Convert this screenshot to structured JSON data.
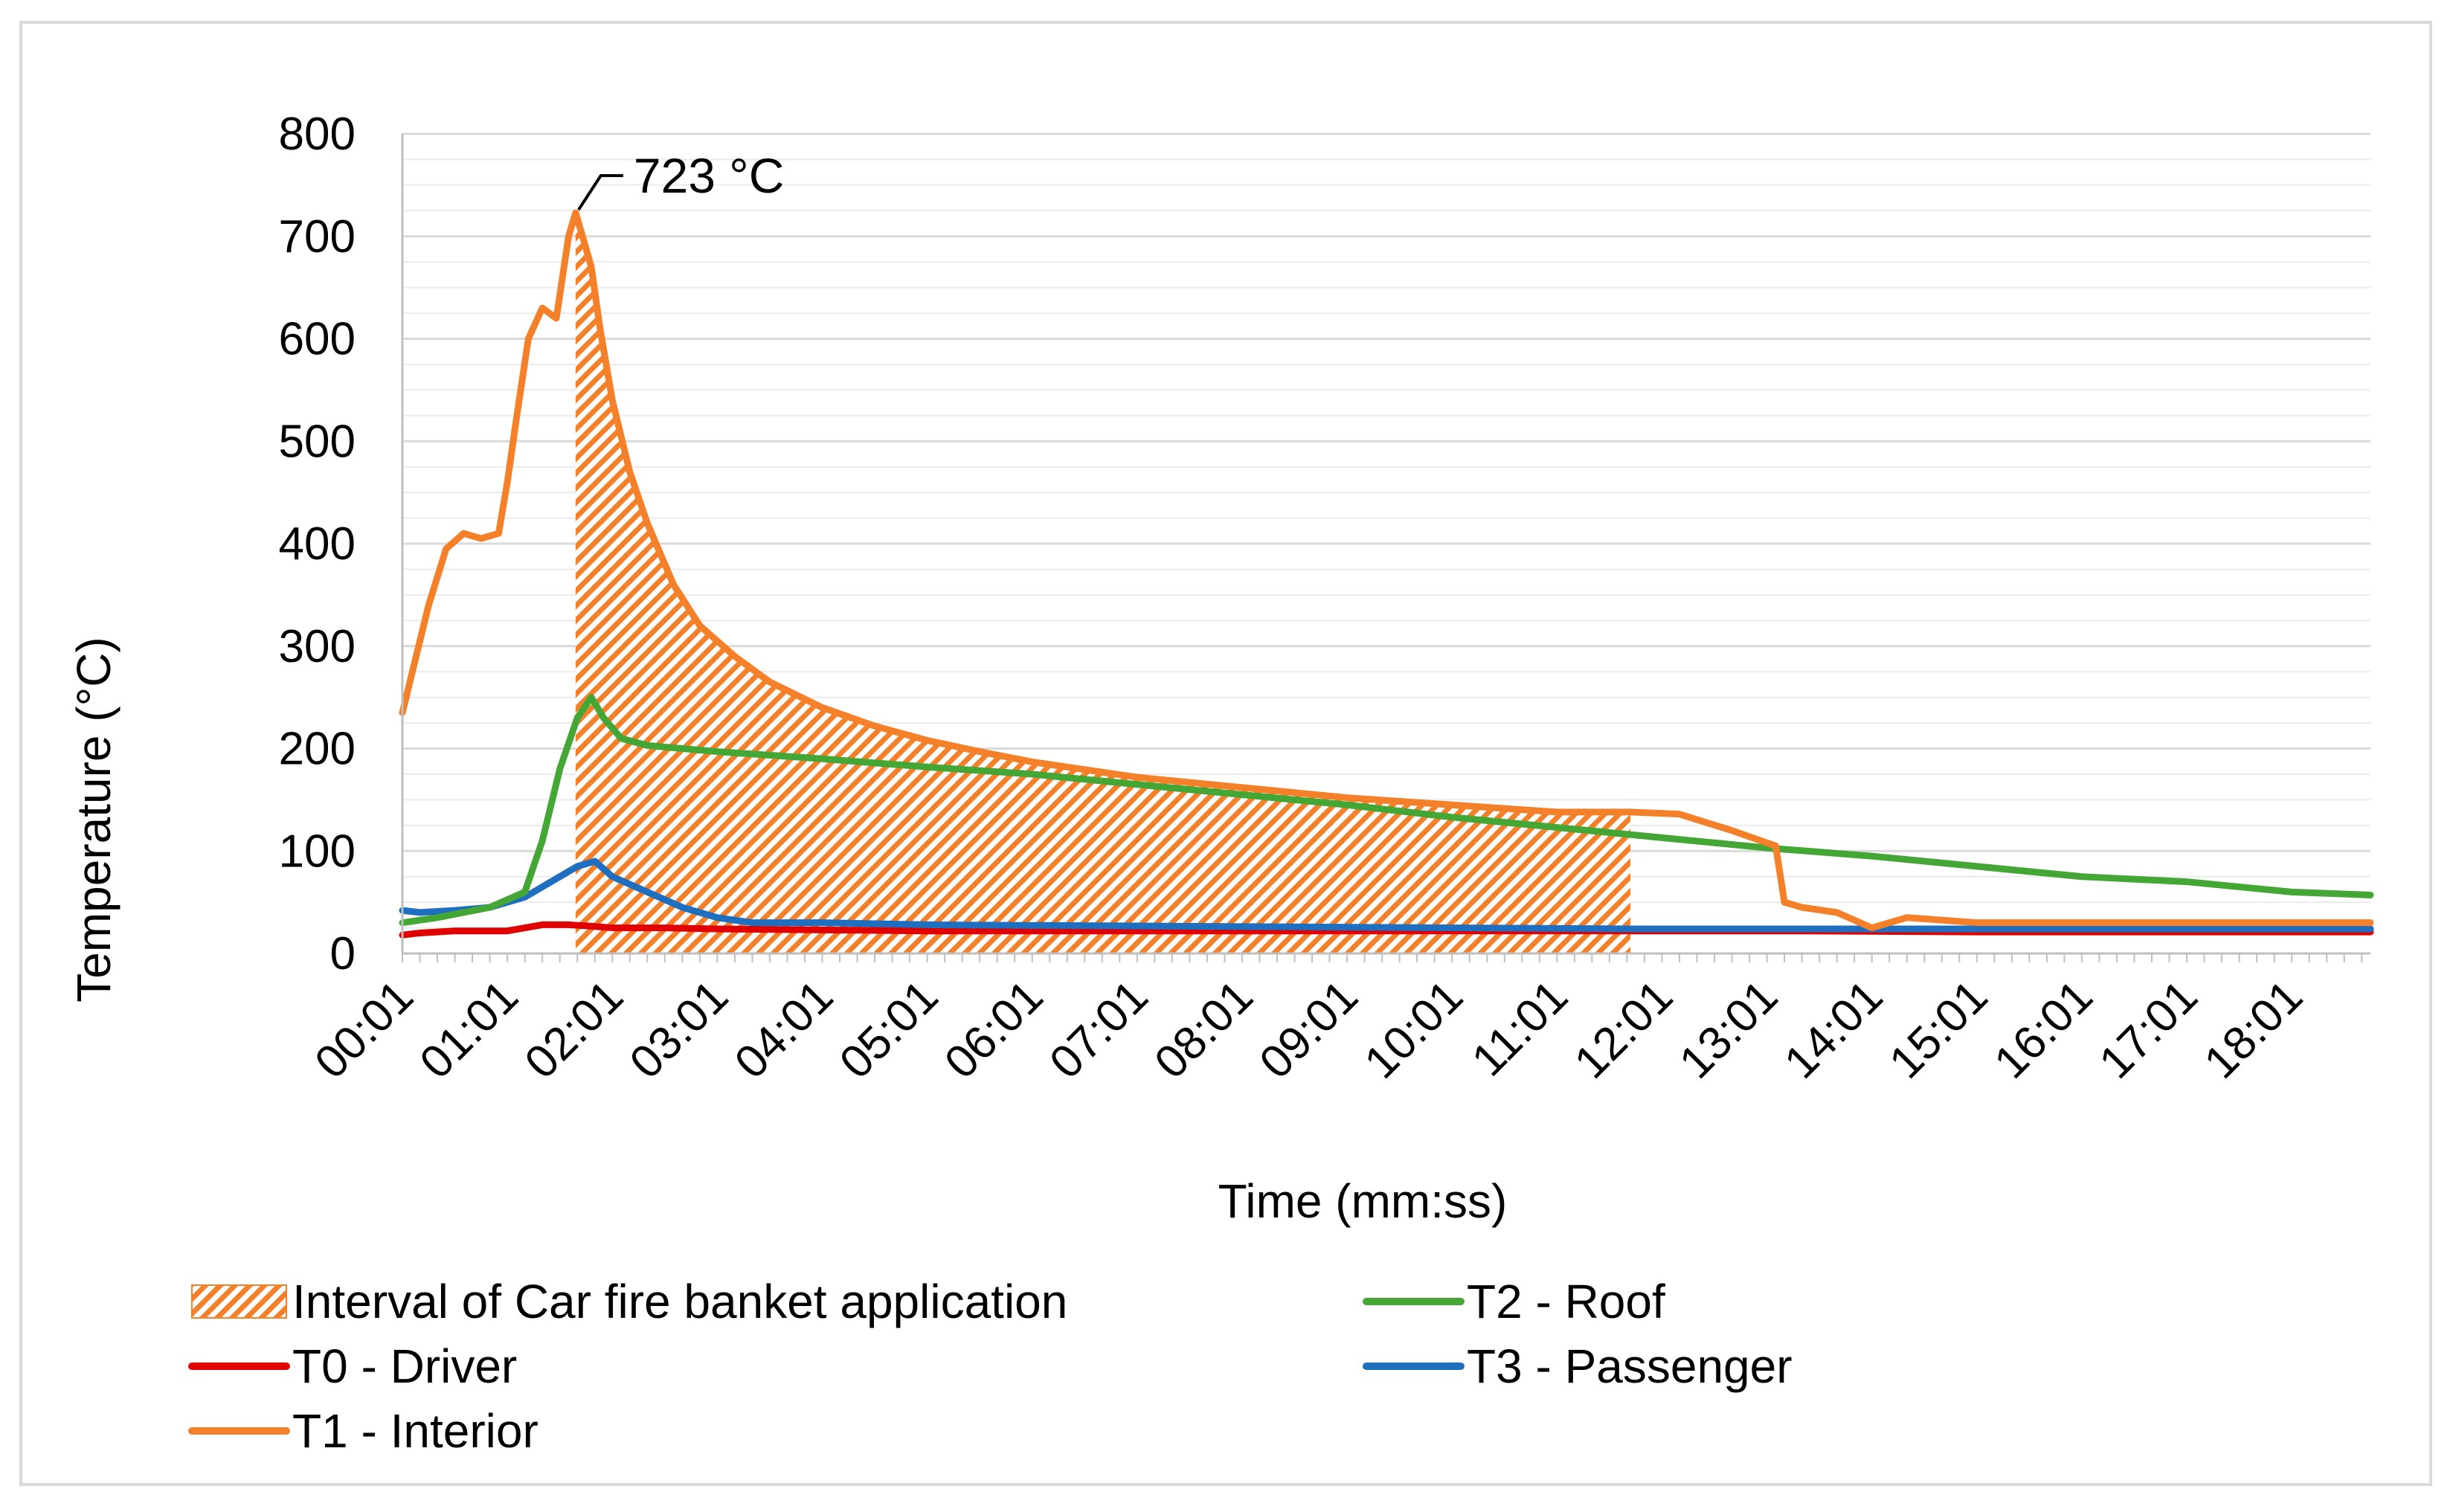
{
  "chart_data": {
    "type": "line",
    "title": "",
    "xlabel": "Time (mm:ss)",
    "ylabel": "Temperature  (°C)",
    "ylim": [
      0,
      800
    ],
    "yticks": [
      0,
      100,
      200,
      300,
      400,
      500,
      600,
      700,
      800
    ],
    "xlim": [
      0,
      1125
    ],
    "x_unit": "seconds",
    "x_tick_values": [
      0,
      60,
      120,
      180,
      240,
      300,
      360,
      420,
      480,
      540,
      600,
      660,
      720,
      780,
      840,
      900,
      960,
      1020,
      1080
    ],
    "x_tick_labels": [
      "00:01",
      "01:01",
      "02:01",
      "03:01",
      "04:01",
      "05:01",
      "06:01",
      "07:01",
      "08:01",
      "09:01",
      "10:01",
      "11:01",
      "12:01",
      "13:01",
      "14:01",
      "15:01",
      "16:01",
      "17:01",
      "18:01"
    ],
    "grid": "horizontal",
    "legend_position": "bottom",
    "annotation": {
      "text": "723 °C",
      "x": 99,
      "y": 723
    },
    "interval": {
      "name": "Interval of Car fire banket application",
      "color": "#f4802a",
      "x": [
        99,
        103,
        108,
        113,
        120,
        130,
        140,
        155,
        170,
        190,
        210,
        240,
        270,
        300,
        330,
        360,
        420,
        480,
        540,
        600,
        660,
        702
      ],
      "upper": [
        723,
        700,
        670,
        610,
        540,
        470,
        420,
        360,
        320,
        290,
        265,
        240,
        222,
        208,
        197,
        187,
        172,
        162,
        152,
        145,
        138,
        138
      ]
    },
    "series": [
      {
        "name": "T0 - Driver",
        "color": "#e00000",
        "x": [
          0,
          10,
          30,
          60,
          80,
          95,
          105,
          120,
          150,
          180,
          240,
          300,
          400,
          500,
          600,
          700,
          800,
          900,
          1000,
          1125
        ],
        "y": [
          18,
          20,
          22,
          22,
          28,
          28,
          27,
          25,
          25,
          24,
          23,
          22,
          22,
          22,
          22,
          22,
          22,
          21,
          21,
          21
        ]
      },
      {
        "name": "T1 - Interior",
        "color": "#f4802a",
        "x": [
          0,
          5,
          15,
          25,
          35,
          45,
          55,
          60,
          65,
          72,
          80,
          88,
          95,
          99,
          103,
          108,
          113,
          120,
          130,
          140,
          155,
          170,
          190,
          210,
          240,
          270,
          300,
          330,
          360,
          420,
          480,
          540,
          600,
          660,
          702,
          730,
          760,
          785,
          790,
          800,
          820,
          840,
          860,
          900,
          1000,
          1125
        ],
        "y": [
          235,
          270,
          340,
          395,
          410,
          405,
          410,
          460,
          520,
          600,
          630,
          620,
          700,
          723,
          700,
          670,
          610,
          540,
          470,
          420,
          360,
          320,
          290,
          265,
          240,
          222,
          208,
          197,
          187,
          172,
          162,
          152,
          145,
          138,
          138,
          136,
          120,
          105,
          50,
          45,
          40,
          25,
          35,
          30,
          30,
          30
        ]
      },
      {
        "name": "T2 - Roof",
        "color": "#43a635",
        "x": [
          0,
          20,
          50,
          70,
          80,
          90,
          100,
          108,
          115,
          125,
          140,
          180,
          240,
          300,
          360,
          420,
          480,
          540,
          600,
          660,
          720,
          780,
          840,
          900,
          960,
          1020,
          1080,
          1125
        ],
        "y": [
          30,
          35,
          45,
          60,
          110,
          180,
          230,
          250,
          230,
          210,
          203,
          197,
          190,
          182,
          175,
          165,
          155,
          145,
          133,
          123,
          113,
          103,
          95,
          85,
          75,
          70,
          60,
          57
        ]
      },
      {
        "name": "T3 - Passenger",
        "color": "#1f6fc1",
        "x": [
          0,
          10,
          30,
          50,
          70,
          90,
          100,
          110,
          120,
          140,
          160,
          180,
          200,
          240,
          300,
          400,
          500,
          600,
          700,
          800,
          900,
          1000,
          1125
        ],
        "y": [
          42,
          40,
          42,
          45,
          55,
          75,
          85,
          90,
          75,
          60,
          45,
          35,
          30,
          30,
          28,
          27,
          26,
          25,
          24,
          24,
          24,
          24,
          24
        ]
      }
    ]
  }
}
